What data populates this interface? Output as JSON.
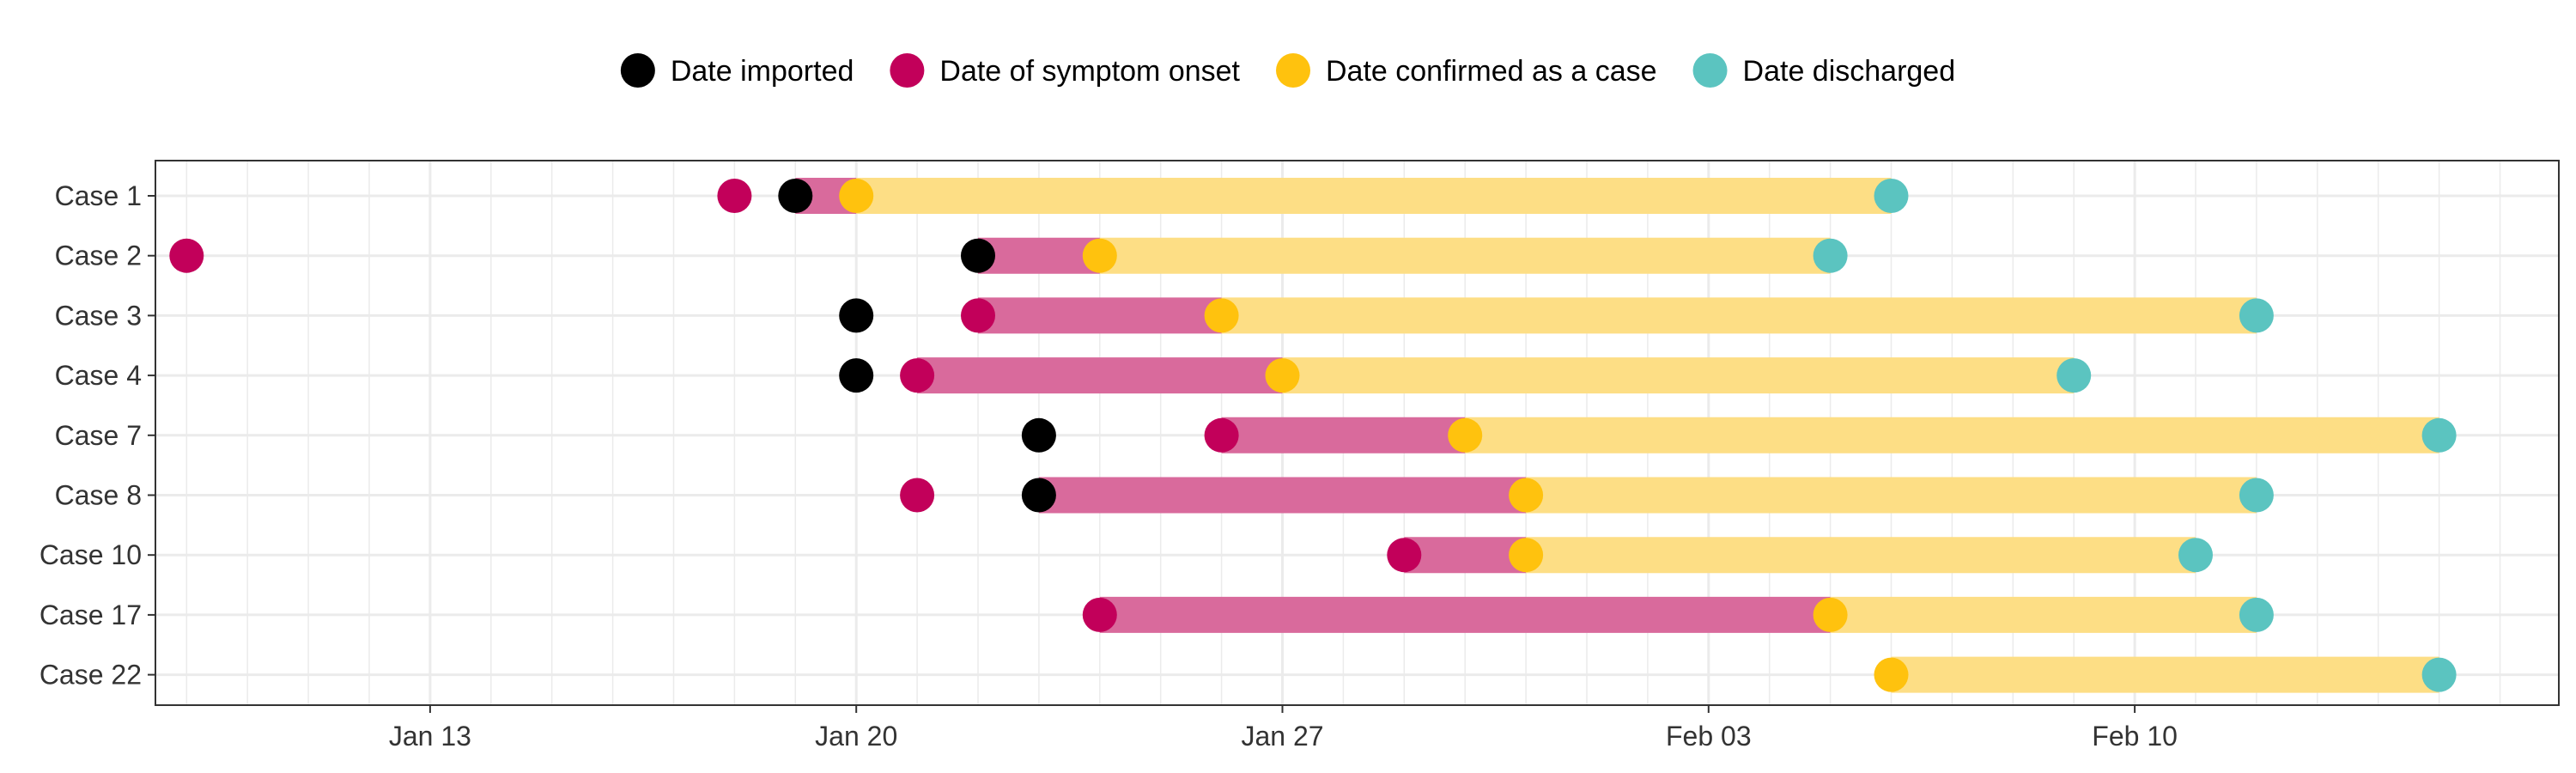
{
  "chart_data": {
    "type": "scatter",
    "title": "",
    "xlabel": "",
    "ylabel": "",
    "x_axis": {
      "type": "date",
      "range": [
        "2020-01-06",
        "2020-02-15"
      ],
      "ticks": [
        "2020-01-13",
        "2020-01-20",
        "2020-01-27",
        "2020-02-03",
        "2020-02-10"
      ],
      "tick_labels": [
        "Jan 13",
        "Jan 20",
        "Jan 27",
        "Feb 03",
        "Feb 10"
      ]
    },
    "categories": [
      "Case 1",
      "Case 2",
      "Case 3",
      "Case 4",
      "Case 7",
      "Case 8",
      "Case 10",
      "Case 17",
      "Case 22"
    ],
    "legend": {
      "position": "top"
    },
    "grid": true,
    "series": [
      {
        "name": "Date imported",
        "color": "#000000",
        "dates": [
          "2020-01-19",
          "2020-01-22",
          "2020-01-20",
          "2020-01-20",
          "2020-01-23",
          "2020-01-23",
          null,
          null,
          null
        ]
      },
      {
        "name": "Date of symptom onset",
        "color": "#C2005A",
        "dates": [
          "2020-01-18",
          "2020-01-09",
          "2020-01-22",
          "2020-01-21",
          "2020-01-26",
          "2020-01-21",
          "2020-01-29",
          "2020-01-24",
          null
        ]
      },
      {
        "name": "Date confirmed as a case",
        "color": "#FFC20E",
        "dates": [
          "2020-01-20",
          "2020-01-24",
          "2020-01-26",
          "2020-01-27",
          "2020-01-30",
          "2020-01-31",
          "2020-01-31",
          "2020-02-05",
          "2020-02-06"
        ]
      },
      {
        "name": "Date discharged",
        "color": "#5BC4C0",
        "dates": [
          "2020-02-06",
          "2020-02-05",
          "2020-02-12",
          "2020-02-09",
          "2020-02-15",
          "2020-02-12",
          "2020-02-11",
          "2020-02-12",
          "2020-02-15"
        ]
      }
    ],
    "segments": {
      "pink_color": "#D96A9C",
      "yellow_color": "#FDDE85"
    }
  }
}
